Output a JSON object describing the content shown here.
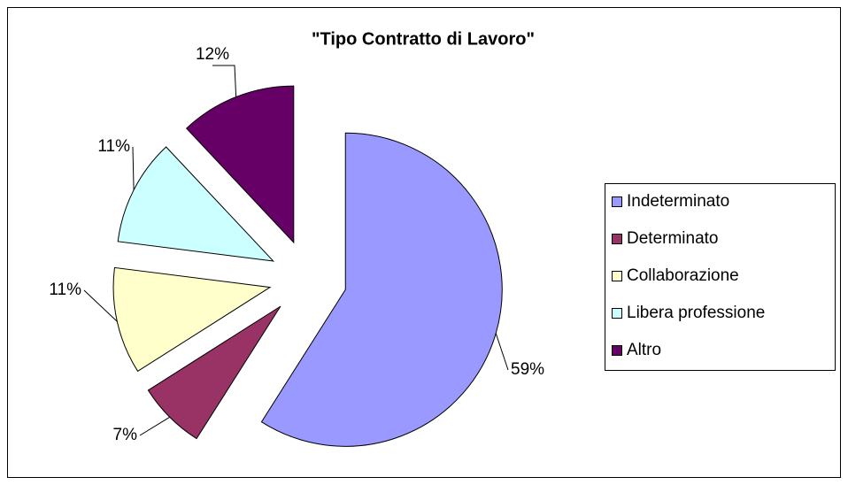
{
  "chart_data": {
    "type": "pie",
    "title": "\"Tipo Contratto di Lavoro\"",
    "categories": [
      "Indeterminato",
      "Determinato",
      "Collaborazione",
      "Libera professione",
      "Altro"
    ],
    "values": [
      59,
      7,
      11,
      11,
      12
    ],
    "value_labels": [
      "59%",
      "7%",
      "11%",
      "11%",
      "12%"
    ],
    "colors": [
      "#9999ff",
      "#993366",
      "#ffffcc",
      "#ccffff",
      "#660066"
    ],
    "legend": "right"
  }
}
